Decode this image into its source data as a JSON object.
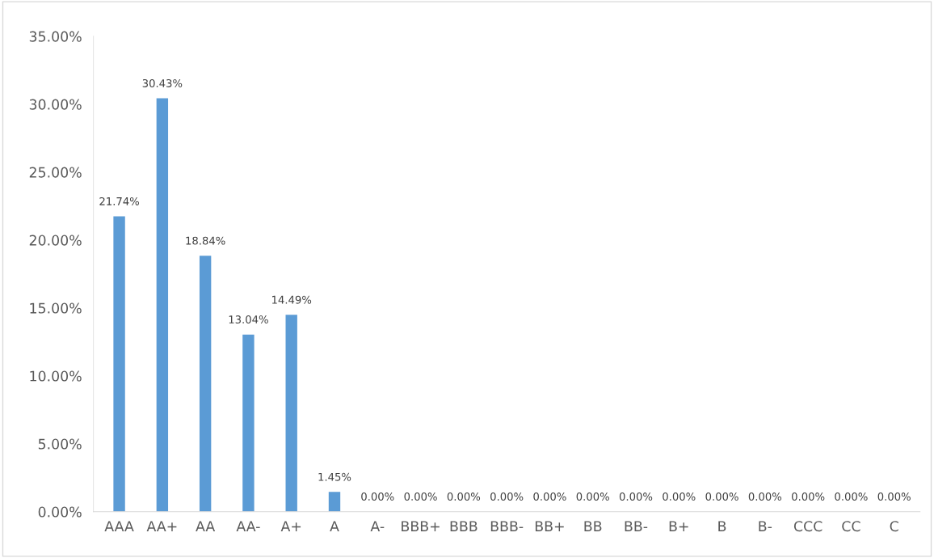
{
  "chart_data": {
    "type": "bar",
    "categories": [
      "AAA",
      "AA+",
      "AA",
      "AA-",
      "A+",
      "A",
      "A-",
      "BBB+",
      "BBB",
      "BBB-",
      "BB+",
      "BB",
      "BB-",
      "B+",
      "B",
      "B-",
      "CCC",
      "CC",
      "C"
    ],
    "values": [
      21.74,
      30.43,
      18.84,
      13.04,
      14.49,
      1.45,
      0,
      0,
      0,
      0,
      0,
      0,
      0,
      0,
      0,
      0,
      0,
      0,
      0
    ],
    "value_labels": [
      "21.74%",
      "30.43%",
      "18.84%",
      "13.04%",
      "14.49%",
      "1.45%",
      "0.00%",
      "0.00%",
      "0.00%",
      "0.00%",
      "0.00%",
      "0.00%",
      "0.00%",
      "0.00%",
      "0.00%",
      "0.00%",
      "0.00%",
      "0.00%",
      "0.00%"
    ],
    "color": "#5b9bd5",
    "ylim": [
      0,
      35
    ],
    "yticks": [
      {
        "value": 0,
        "label": "0.00%"
      },
      {
        "value": 5,
        "label": "5.00%"
      },
      {
        "value": 10,
        "label": "10.00%"
      },
      {
        "value": 15,
        "label": "15.00%"
      },
      {
        "value": 20,
        "label": "20.00%"
      },
      {
        "value": 25,
        "label": "25.00%"
      },
      {
        "value": 30,
        "label": "30.00%"
      },
      {
        "value": 35,
        "label": "35.00%"
      }
    ],
    "grid": false,
    "legend": false
  }
}
